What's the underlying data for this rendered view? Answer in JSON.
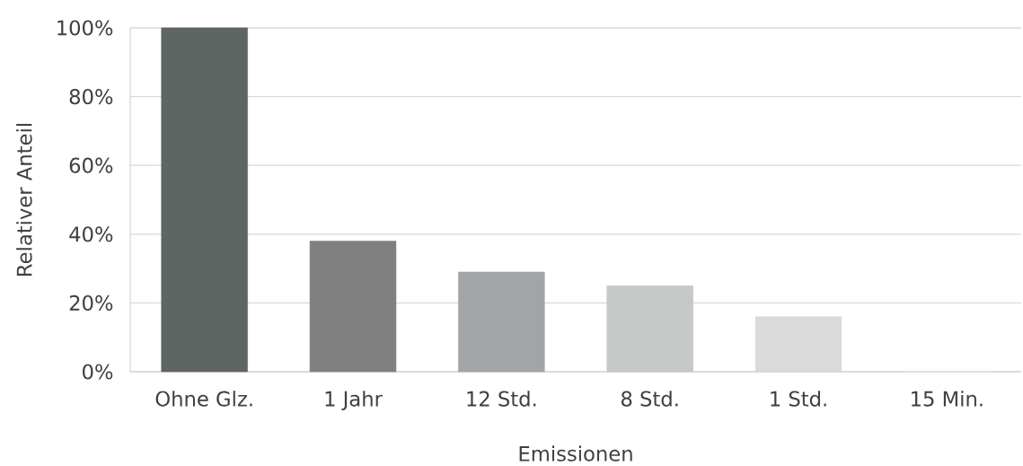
{
  "chart_data": {
    "type": "bar",
    "xlabel": "Emissionen",
    "ylabel": "Relativer Anteil",
    "categories": [
      "Ohne Glz.",
      "1 Jahr",
      "12 Std.",
      "8 Std.",
      "1 Std.",
      "15 Min."
    ],
    "values": [
      100,
      38,
      29,
      25,
      16,
      0
    ],
    "colors": [
      "#5f6563",
      "#808080",
      "#a2a5a5",
      "#c6c8c7",
      "#d9dad9",
      "#e6e6e6"
    ],
    "ylim": [
      0,
      100
    ],
    "yticks": [
      {
        "value": 0,
        "label": "0%"
      },
      {
        "value": 20,
        "label": "20%"
      },
      {
        "value": 40,
        "label": "40%"
      },
      {
        "value": 60,
        "label": "60%"
      },
      {
        "value": 80,
        "label": "80%"
      },
      {
        "value": 100,
        "label": "100%"
      }
    ],
    "grid": "y"
  }
}
